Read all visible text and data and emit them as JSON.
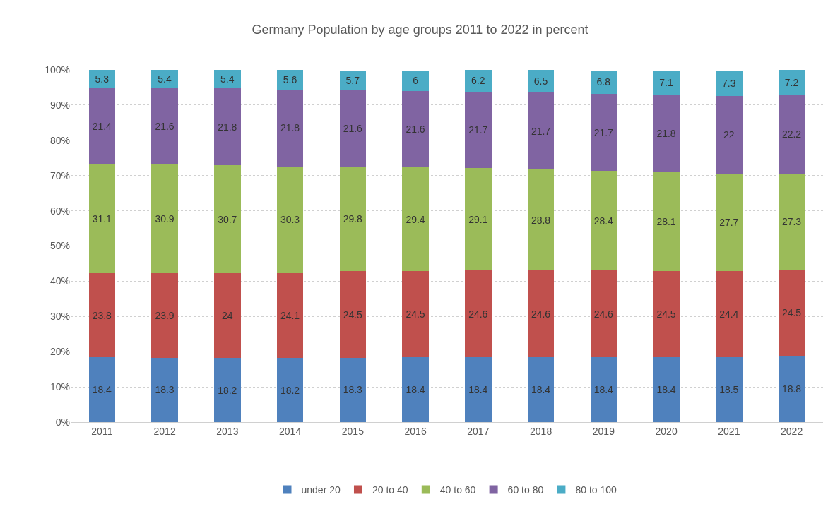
{
  "chart_data": {
    "type": "bar",
    "title": "Germany Population by age groups 2011 to 2022 in percent",
    "categories": [
      "2011",
      "2012",
      "2013",
      "2014",
      "2015",
      "2016",
      "2017",
      "2018",
      "2019",
      "2020",
      "2021",
      "2022"
    ],
    "series": [
      {
        "name": "under 20",
        "color": "#4f81bd",
        "values": [
          18.4,
          18.3,
          18.2,
          18.2,
          18.3,
          18.4,
          18.4,
          18.4,
          18.4,
          18.4,
          18.5,
          18.8
        ]
      },
      {
        "name": "20 to 40",
        "color": "#c0504d",
        "values": [
          23.8,
          23.9,
          24,
          24.1,
          24.5,
          24.5,
          24.6,
          24.6,
          24.6,
          24.5,
          24.4,
          24.5
        ]
      },
      {
        "name": "40 to 60",
        "color": "#9bbb59",
        "values": [
          31.1,
          30.9,
          30.7,
          30.3,
          29.8,
          29.4,
          29.1,
          28.8,
          28.4,
          28.1,
          27.7,
          27.3
        ]
      },
      {
        "name": "60 to 80",
        "color": "#8064a2",
        "values": [
          21.4,
          21.6,
          21.8,
          21.8,
          21.6,
          21.6,
          21.7,
          21.7,
          21.7,
          21.8,
          22,
          22.2
        ]
      },
      {
        "name": "80 to 100",
        "color": "#4bacc6",
        "values": [
          5.3,
          5.4,
          5.4,
          5.6,
          5.7,
          6,
          6.2,
          6.5,
          6.8,
          7.1,
          7.3,
          7.2
        ]
      }
    ],
    "stacked": true,
    "data_labels": true,
    "ylim": [
      0,
      100.2
    ],
    "yticks": [
      {
        "value": 0,
        "label": "0%"
      },
      {
        "value": 10,
        "label": "10%"
      },
      {
        "value": 20,
        "label": "20%"
      },
      {
        "value": 30,
        "label": "30%"
      },
      {
        "value": 40,
        "label": "40%"
      },
      {
        "value": 50,
        "label": "50%"
      },
      {
        "value": 60,
        "label": "60%"
      },
      {
        "value": 70,
        "label": "70%"
      },
      {
        "value": 80,
        "label": "80%"
      },
      {
        "value": 90,
        "label": "90%"
      },
      {
        "value": 100,
        "label": "100%"
      }
    ],
    "grid": "y",
    "legend": "bottom"
  }
}
